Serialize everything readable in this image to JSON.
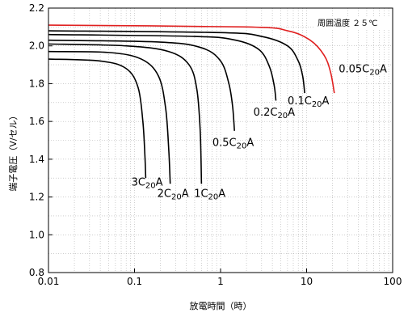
{
  "chart_data": {
    "type": "line",
    "xscale": "log",
    "xlim": [
      0.01,
      100
    ],
    "ylim": [
      0.8,
      2.2
    ],
    "xticks": [
      "0.01",
      "0.1",
      "1",
      "10",
      "100"
    ],
    "yticks": [
      "0.8",
      "1.0",
      "1.2",
      "1.4",
      "1.6",
      "1.8",
      "2.0",
      "2.2"
    ],
    "xlabel": "放電時間（時）",
    "ylabel": "端子電圧（V/セル）",
    "note": "周囲温度 ２５℃",
    "grid": "dotted minor on log x, dotted horizontal at 0.1 V",
    "colors": {
      "highlight": "#e02020",
      "default": "#000000",
      "grid": "#b0b0b0"
    },
    "series": [
      {
        "name": "3C20A",
        "color": "#000000",
        "points": [
          [
            0.01,
            1.93
          ],
          [
            0.04,
            1.92
          ],
          [
            0.08,
            1.88
          ],
          [
            0.11,
            1.78
          ],
          [
            0.125,
            1.6
          ],
          [
            0.132,
            1.42
          ],
          [
            0.135,
            1.3
          ]
        ]
      },
      {
        "name": "2C20A",
        "color": "#000000",
        "points": [
          [
            0.01,
            1.97
          ],
          [
            0.05,
            1.965
          ],
          [
            0.12,
            1.93
          ],
          [
            0.19,
            1.84
          ],
          [
            0.23,
            1.67
          ],
          [
            0.25,
            1.45
          ],
          [
            0.26,
            1.27
          ]
        ]
      },
      {
        "name": "1C20A",
        "color": "#000000",
        "points": [
          [
            0.01,
            2.01
          ],
          [
            0.08,
            2.0
          ],
          [
            0.25,
            1.97
          ],
          [
            0.43,
            1.9
          ],
          [
            0.53,
            1.77
          ],
          [
            0.58,
            1.55
          ],
          [
            0.6,
            1.27
          ]
        ]
      },
      {
        "name": "0.5C20A",
        "color": "#000000",
        "points": [
          [
            0.01,
            2.03
          ],
          [
            0.2,
            2.02
          ],
          [
            0.6,
            1.99
          ],
          [
            1.0,
            1.92
          ],
          [
            1.25,
            1.8
          ],
          [
            1.38,
            1.68
          ],
          [
            1.45,
            1.55
          ]
        ]
      },
      {
        "name": "0.2C20A",
        "color": "#000000",
        "points": [
          [
            0.01,
            2.06
          ],
          [
            0.5,
            2.05
          ],
          [
            1.5,
            2.03
          ],
          [
            2.8,
            1.98
          ],
          [
            3.7,
            1.89
          ],
          [
            4.2,
            1.79
          ],
          [
            4.4,
            1.71
          ]
        ]
      },
      {
        "name": "0.1C20A",
        "color": "#000000",
        "points": [
          [
            0.01,
            2.08
          ],
          [
            1.0,
            2.07
          ],
          [
            3.0,
            2.05
          ],
          [
            6.0,
            2.0
          ],
          [
            8.0,
            1.92
          ],
          [
            9.0,
            1.84
          ],
          [
            9.5,
            1.75
          ]
        ]
      },
      {
        "name": "0.05C20A",
        "color": "#e02020",
        "points": [
          [
            0.01,
            2.11
          ],
          [
            2.0,
            2.1
          ],
          [
            6.0,
            2.08
          ],
          [
            11.0,
            2.03
          ],
          [
            16.0,
            1.95
          ],
          [
            19.0,
            1.86
          ],
          [
            21.0,
            1.75
          ]
        ]
      }
    ],
    "labels": [
      {
        "series": "3C20A",
        "main": "3C",
        "sub": "20",
        "tail": "A",
        "x": 0.14,
        "y": 1.26
      },
      {
        "series": "2C20A",
        "main": "2C",
        "sub": "20",
        "tail": "A",
        "x": 0.28,
        "y": 1.2
      },
      {
        "series": "1C20A",
        "main": "1C",
        "sub": "20",
        "tail": "A",
        "x": 0.75,
        "y": 1.2
      },
      {
        "series": "0.5C20A",
        "main": "0.5C",
        "sub": "20",
        "tail": "A",
        "x": 1.4,
        "y": 1.47
      },
      {
        "series": "0.2C20A",
        "main": "0.2C",
        "sub": "20",
        "tail": "A",
        "x": 4.2,
        "y": 1.63
      },
      {
        "series": "0.1C20A",
        "main": "0.1C",
        "sub": "20",
        "tail": "A",
        "x": 10.5,
        "y": 1.69
      },
      {
        "series": "0.05C20A",
        "main": "0.05C",
        "sub": "20",
        "tail": "A",
        "x": 45.0,
        "y": 1.86
      }
    ]
  }
}
